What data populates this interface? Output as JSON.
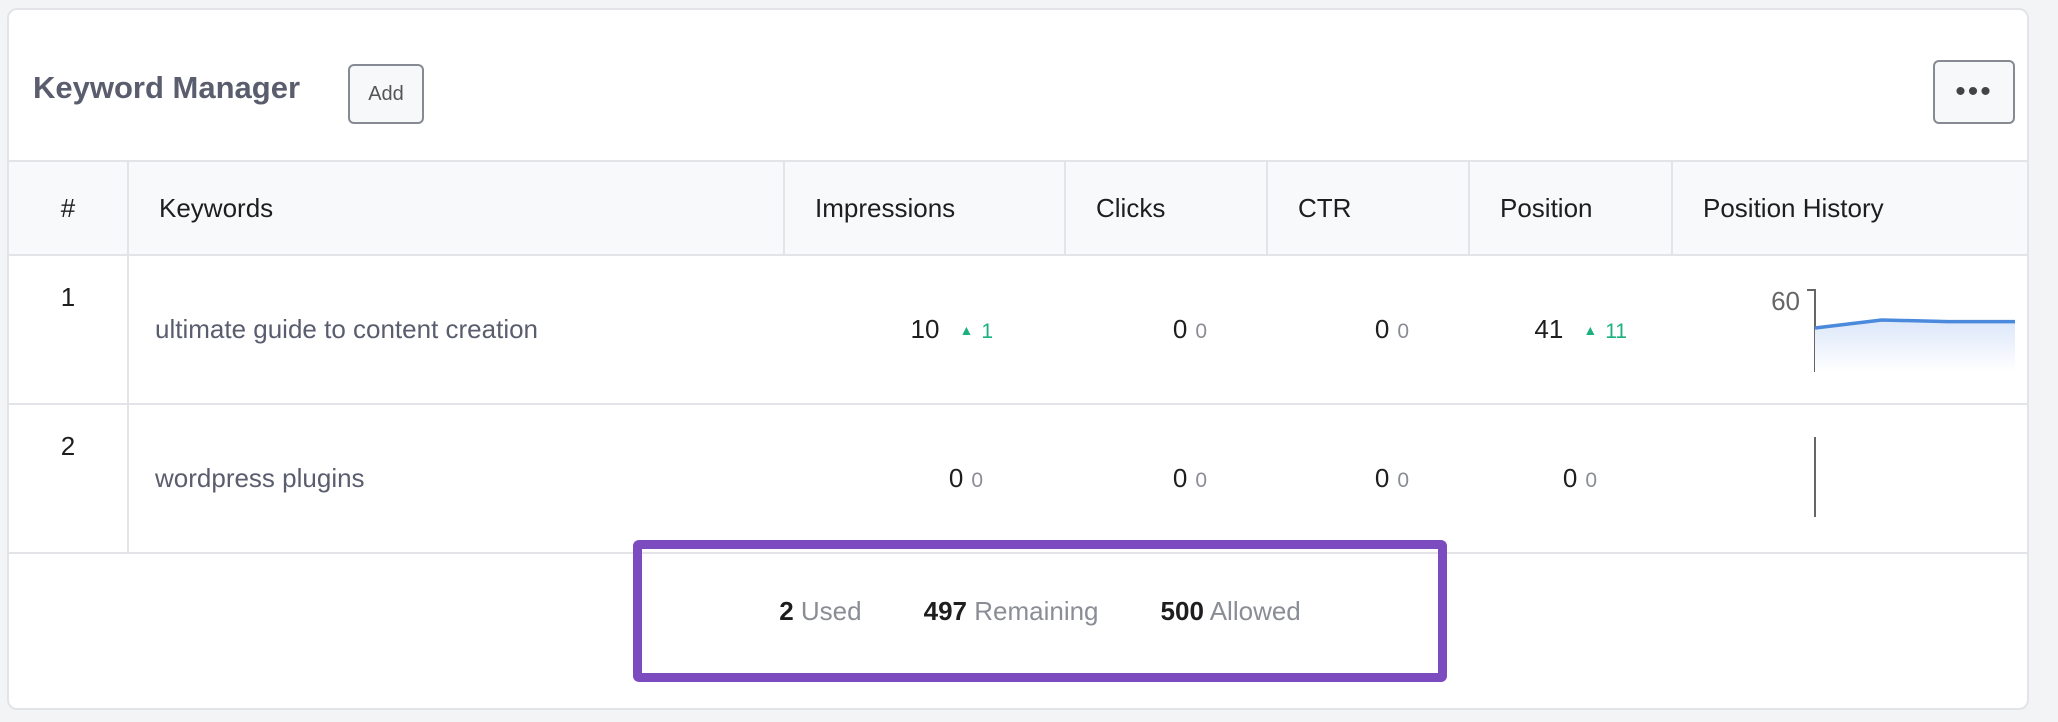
{
  "header": {
    "title": "Keyword Manager",
    "add_label": "Add",
    "more_icon": "ellipsis-icon",
    "more_label": "•••"
  },
  "table": {
    "columns": [
      "#",
      "Keywords",
      "Impressions",
      "Clicks",
      "CTR",
      "Position",
      "Position History"
    ],
    "rows": [
      {
        "num": "1",
        "keyword": "ultimate guide to content creation",
        "impressions": "10",
        "impressions_change": "1",
        "impressions_trend": "up",
        "clicks": "0",
        "clicks_change": "0",
        "ctr": "0",
        "ctr_change": "0",
        "position": "41",
        "position_change": "11",
        "position_trend": "up",
        "history": {
          "y_tick": "60",
          "values": [
            64,
            59,
            60,
            60
          ]
        }
      },
      {
        "num": "2",
        "keyword": "wordpress plugins",
        "impressions": "0",
        "impressions_change": "0",
        "clicks": "0",
        "clicks_change": "0",
        "ctr": "0",
        "ctr_change": "0",
        "position": "0",
        "position_change": "0",
        "history": {
          "values": []
        }
      }
    ]
  },
  "footer": {
    "used": "2",
    "used_label": "Used",
    "remaining": "497",
    "remaining_label": "Remaining",
    "allowed": "500",
    "allowed_label": "Allowed"
  },
  "colors": {
    "accent_up": "#1bb07c",
    "highlight_border": "#7b4bbf",
    "sparkline": "#4a89dc"
  }
}
